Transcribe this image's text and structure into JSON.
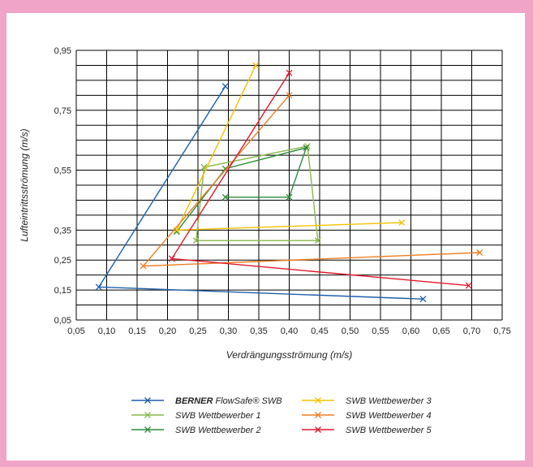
{
  "chart_data": {
    "type": "line",
    "xlabel": "Verdrängungsströmung (m/s)",
    "ylabel": "Lufteintrittsströmung (m/s)",
    "xlim": [
      0.05,
      0.75
    ],
    "ylim": [
      0.05,
      0.95
    ],
    "x_ticks": [
      "0,05",
      "0,10",
      "0,15",
      "0,20",
      "0,25",
      "0,30",
      "0,35",
      "0,40",
      "0,45",
      "0,50",
      "0,55",
      "0,60",
      "0,65",
      "0,70",
      "0,75"
    ],
    "y_ticks": [
      {
        "value": 0.95,
        "label": "0,95"
      },
      {
        "value": 0.75,
        "label": "0,75"
      },
      {
        "value": 0.55,
        "label": "0,55"
      },
      {
        "value": 0.35,
        "label": "0,35"
      },
      {
        "value": 0.25,
        "label": "0,25"
      },
      {
        "value": 0.15,
        "label": "0,15"
      },
      {
        "value": 0.05,
        "label": "0,05"
      }
    ],
    "grid": true,
    "legend_position": "bottom",
    "series": [
      {
        "name_bold": "BERNER",
        "name_rest": "FlowSafe® SWB",
        "color": "#1f5fa8",
        "points": [
          [
            0.62,
            0.12
          ],
          [
            0.087,
            0.16
          ],
          [
            0.295,
            0.83
          ]
        ]
      },
      {
        "name": "SWB Wettbewerber 1",
        "color": "#8ab84a",
        "points": [
          [
            0.26,
            0.56
          ],
          [
            0.43,
            0.63
          ],
          [
            0.447,
            0.315
          ],
          [
            0.247,
            0.315
          ],
          [
            0.26,
            0.56
          ]
        ]
      },
      {
        "name": "SWB Wettbewerber 2",
        "color": "#2e8b3a",
        "points": [
          [
            0.295,
            0.46
          ],
          [
            0.4,
            0.46
          ],
          [
            0.428,
            0.625
          ],
          [
            0.295,
            0.555
          ],
          [
            0.215,
            0.345
          ]
        ]
      },
      {
        "name": "SWB Wettbewerber 3",
        "color": "#f2c200",
        "points": [
          [
            0.585,
            0.375
          ],
          [
            0.215,
            0.35
          ],
          [
            0.345,
            0.9
          ]
        ]
      },
      {
        "name": "SWB Wettbewerber 4",
        "color": "#ee7d22",
        "points": [
          [
            0.713,
            0.275
          ],
          [
            0.16,
            0.23
          ],
          [
            0.4,
            0.8
          ]
        ]
      },
      {
        "name": "SWB Wettbewerber 5",
        "color": "#e0192c",
        "points": [
          [
            0.695,
            0.165
          ],
          [
            0.207,
            0.255
          ],
          [
            0.4,
            0.875
          ]
        ]
      }
    ]
  }
}
